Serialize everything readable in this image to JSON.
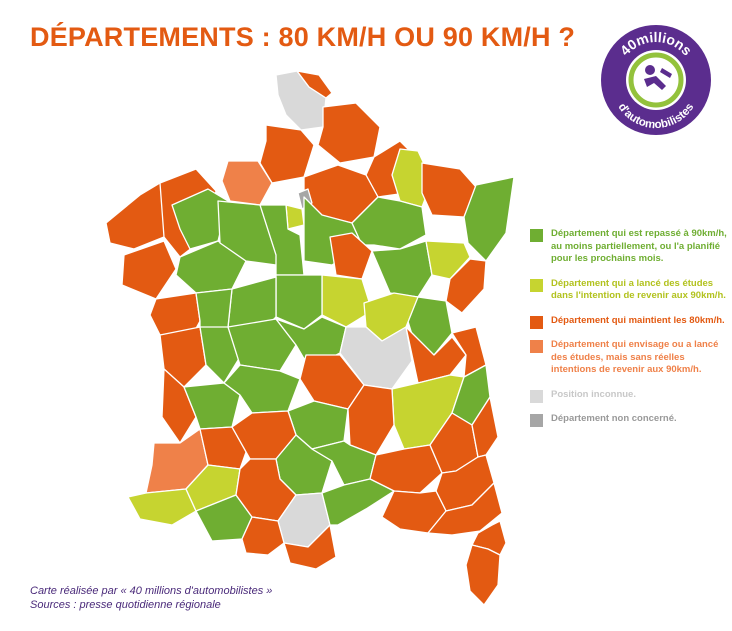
{
  "title": "DÉPARTEMENTS : 80 KM/H OU 90 KM/H ?",
  "logo": {
    "line1": "40millions",
    "line2": "d'automobilistes",
    "icon": "driver-steering-wheel-icon",
    "ring_color": "#5b2d8e",
    "accent_color": "#93c23c"
  },
  "colors": {
    "green": "#6fae32",
    "lime": "#c6d430",
    "orange": "#e35a12",
    "light_orange": "#ef8149",
    "light_grey": "#d9d9d9",
    "dark_grey": "#a6a6a6"
  },
  "legend": [
    {
      "color": "#6fae32",
      "text_color": "#6fae32",
      "label": "Département qui est repassé à 90km/h, au moins partiellement, ou l'a planifié pour les prochains mois."
    },
    {
      "color": "#c6d430",
      "text_color": "#b2c21e",
      "label": "Département qui a lancé des études dans l'intention de revenir aux 90km/h."
    },
    {
      "color": "#e35a12",
      "text_color": "#e35a12",
      "label": "Département qui maintient les 80km/h."
    },
    {
      "color": "#ef8149",
      "text_color": "#ef8149",
      "label": "Département qui envisage ou a lancé des études, mais sans réelles intentions de revenir aux 90km/h."
    },
    {
      "color": "#d9d9d9",
      "text_color": "#c8c8c8",
      "label": "Position inconnue."
    },
    {
      "color": "#a6a6a6",
      "text_color": "#999999",
      "label": "Département non concerné."
    }
  ],
  "credits": {
    "line1": "Carte réalisée par « 40 millions d'automobilistes »",
    "line2": "Sources : presse quotidienne régionale"
  }
}
